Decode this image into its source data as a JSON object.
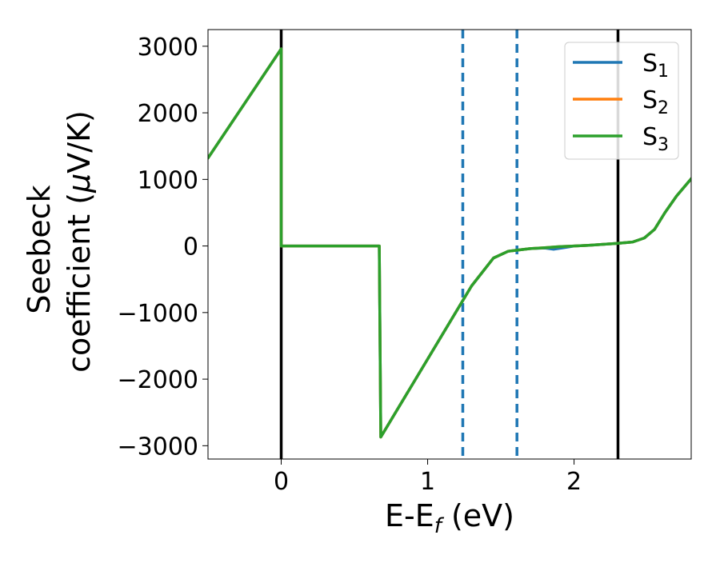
{
  "chart_data": {
    "type": "line",
    "title": "",
    "xlabel": "E-E",
    "xlabel_sub": "f",
    "xlabel_unit": " (eV)",
    "ylabel_line1": "Seebeck",
    "ylabel_line2": "coefficient  (",
    "ylabel_mu": "μ",
    "ylabel_unit": "V/K)",
    "xlim": [
      -0.5,
      2.8
    ],
    "ylim": [
      -3200,
      3250
    ],
    "xticks": [
      0,
      1,
      2
    ],
    "xtick_labels": [
      "0",
      "1",
      "2"
    ],
    "yticks": [
      -3000,
      -2000,
      -1000,
      0,
      1000,
      2000,
      3000
    ],
    "ytick_labels": [
      "−3000",
      "−2000",
      "−1000",
      "0",
      "1000",
      "2000",
      "3000"
    ],
    "grid": false,
    "legend_position": "top-right",
    "series": [
      {
        "name": "S",
        "sub": "1",
        "color": "#1f77b4",
        "x": [
          -0.5,
          0.0,
          0.0,
          0.67,
          0.68,
          1.0,
          1.3,
          1.45,
          1.55,
          1.62,
          1.7,
          1.8,
          1.86,
          1.95,
          2.0,
          2.1,
          2.2,
          2.3,
          2.4,
          2.48,
          2.55,
          2.62,
          2.7,
          2.8
        ],
        "y": [
          1320,
          2960,
          0,
          0,
          -2870,
          -1700,
          -600,
          -180,
          -80,
          -60,
          -40,
          -30,
          -50,
          -20,
          0,
          10,
          25,
          40,
          60,
          120,
          250,
          500,
          750,
          1010
        ]
      },
      {
        "name": "S",
        "sub": "2",
        "color": "#ff7f0e",
        "x": [
          -0.5,
          0.0,
          0.0,
          0.67,
          0.68,
          1.0,
          1.3,
          1.45,
          1.55,
          1.62,
          1.7,
          1.8,
          1.9,
          2.0,
          2.1,
          2.2,
          2.3,
          2.4,
          2.48,
          2.55,
          2.62,
          2.7,
          2.8
        ],
        "y": [
          1320,
          2960,
          0,
          0,
          -2870,
          -1700,
          -600,
          -180,
          -80,
          -60,
          -40,
          -25,
          -10,
          0,
          10,
          25,
          40,
          60,
          120,
          250,
          500,
          750,
          1010
        ]
      },
      {
        "name": "S",
        "sub": "3",
        "color": "#2ca02c",
        "x": [
          -0.5,
          0.0,
          0.0,
          0.67,
          0.68,
          1.0,
          1.3,
          1.45,
          1.55,
          1.62,
          1.7,
          1.8,
          1.9,
          2.0,
          2.1,
          2.2,
          2.3,
          2.4,
          2.48,
          2.55,
          2.62,
          2.7,
          2.8
        ],
        "y": [
          1320,
          2960,
          0,
          0,
          -2870,
          -1700,
          -600,
          -180,
          -80,
          -60,
          -40,
          -25,
          -10,
          0,
          10,
          25,
          40,
          60,
          120,
          250,
          500,
          750,
          1010
        ]
      }
    ],
    "vertical_lines": [
      {
        "x": 0.0,
        "style": "solid",
        "color": "#000000"
      },
      {
        "x": 2.3,
        "style": "solid",
        "color": "#000000"
      },
      {
        "x": 1.24,
        "style": "dashed",
        "color": "#1f77b4"
      },
      {
        "x": 1.61,
        "style": "dashed",
        "color": "#1f77b4"
      }
    ]
  }
}
